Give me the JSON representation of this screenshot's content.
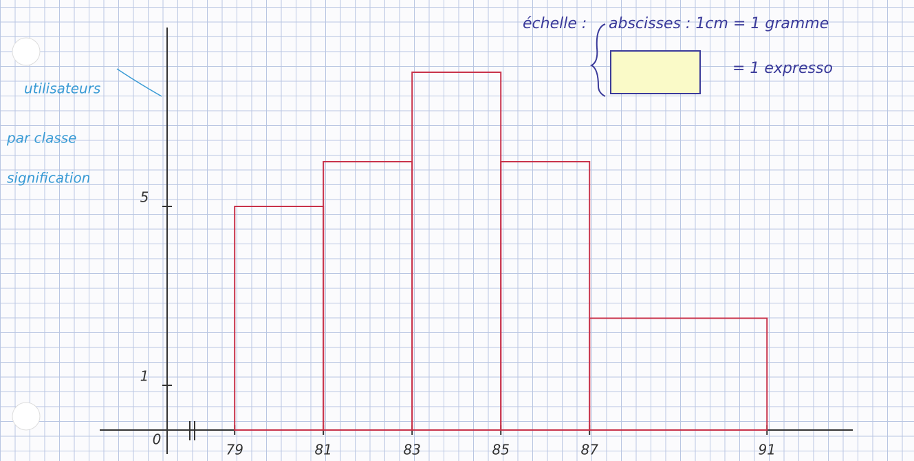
{
  "chart_data": {
    "type": "histogram",
    "bins": [
      79,
      81,
      83,
      85,
      87,
      91
    ],
    "values": [
      5,
      6,
      8,
      6,
      2.5
    ],
    "color": "#c8324a",
    "xlim": [
      77.4,
      93.5
    ],
    "ylim": [
      0,
      9
    ],
    "xticks": [
      79,
      81,
      83,
      85,
      87,
      91
    ],
    "yticks": [
      1,
      5
    ],
    "origin_label": "0",
    "y_label_lines": [
      "utilisateurs",
      "par classe",
      "signification"
    ],
    "scale": {
      "label": "échelle :",
      "x_scale": "abscisses : 1cm = 1 gramme",
      "area_scale": "= 1 expresso"
    }
  }
}
